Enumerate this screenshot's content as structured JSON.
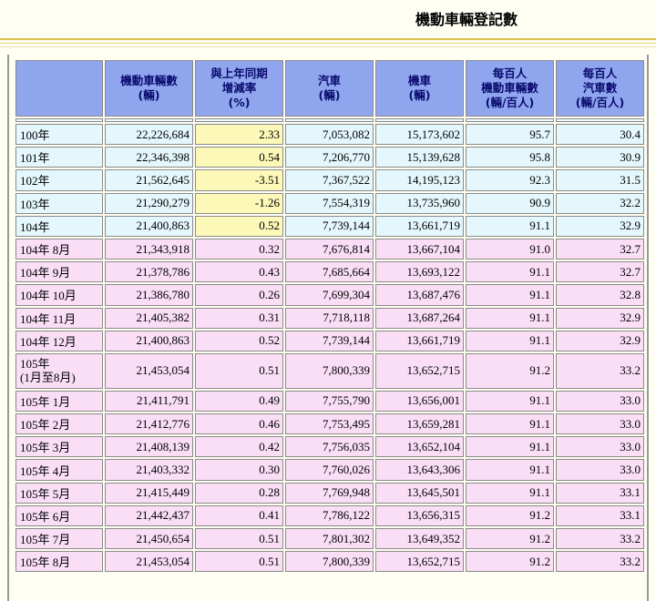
{
  "title": "機動車輛登記數",
  "headers": [
    "",
    "機動車輛數\n(輛)",
    "與上年同期\n增減率\n(%)",
    "汽車\n(輛)",
    "機車\n(輛)",
    "每百人\n機動車輛數\n(輛/百人)",
    "每百人\n汽車數\n(輛/百人)"
  ],
  "annual_rows": [
    {
      "period": "100年",
      "vehicles": "22,226,684",
      "rate": "2.33",
      "cars": "7,053,082",
      "motorcycles": "15,173,602",
      "veh_per100": "95.7",
      "car_per100": "30.4"
    },
    {
      "period": "101年",
      "vehicles": "22,346,398",
      "rate": "0.54",
      "cars": "7,206,770",
      "motorcycles": "15,139,628",
      "veh_per100": "95.8",
      "car_per100": "30.9"
    },
    {
      "period": "102年",
      "vehicles": "21,562,645",
      "rate": "-3.51",
      "cars": "7,367,522",
      "motorcycles": "14,195,123",
      "veh_per100": "92.3",
      "car_per100": "31.5"
    },
    {
      "period": "103年",
      "vehicles": "21,290,279",
      "rate": "-1.26",
      "cars": "7,554,319",
      "motorcycles": "13,735,960",
      "veh_per100": "90.9",
      "car_per100": "32.2"
    },
    {
      "period": "104年",
      "vehicles": "21,400,863",
      "rate": "0.52",
      "cars": "7,739,144",
      "motorcycles": "13,661,719",
      "veh_per100": "91.1",
      "car_per100": "32.9"
    }
  ],
  "monthly_rows": [
    {
      "period": "104年 8月",
      "vehicles": "21,343,918",
      "rate": "0.32",
      "cars": "7,676,814",
      "motorcycles": "13,667,104",
      "veh_per100": "91.0",
      "car_per100": "32.7"
    },
    {
      "period": "104年 9月",
      "vehicles": "21,378,786",
      "rate": "0.43",
      "cars": "7,685,664",
      "motorcycles": "13,693,122",
      "veh_per100": "91.1",
      "car_per100": "32.7"
    },
    {
      "period": "104年 10月",
      "vehicles": "21,386,780",
      "rate": "0.26",
      "cars": "7,699,304",
      "motorcycles": "13,687,476",
      "veh_per100": "91.1",
      "car_per100": "32.8"
    },
    {
      "period": "104年 11月",
      "vehicles": "21,405,382",
      "rate": "0.31",
      "cars": "7,718,118",
      "motorcycles": "13,687,264",
      "veh_per100": "91.1",
      "car_per100": "32.9"
    },
    {
      "period": "104年 12月",
      "vehicles": "21,400,863",
      "rate": "0.52",
      "cars": "7,739,144",
      "motorcycles": "13,661,719",
      "veh_per100": "91.1",
      "car_per100": "32.9"
    },
    {
      "period": "105年\n(1月至8月)",
      "vehicles": "21,453,054",
      "rate": "0.51",
      "cars": "7,800,339",
      "motorcycles": "13,652,715",
      "veh_per100": "91.2",
      "car_per100": "33.2",
      "tall": true
    },
    {
      "period": "105年 1月",
      "vehicles": "21,411,791",
      "rate": "0.49",
      "cars": "7,755,790",
      "motorcycles": "13,656,001",
      "veh_per100": "91.1",
      "car_per100": "33.0"
    },
    {
      "period": "105年 2月",
      "vehicles": "21,412,776",
      "rate": "0.46",
      "cars": "7,753,495",
      "motorcycles": "13,659,281",
      "veh_per100": "91.1",
      "car_per100": "33.0"
    },
    {
      "period": "105年 3月",
      "vehicles": "21,408,139",
      "rate": "0.42",
      "cars": "7,756,035",
      "motorcycles": "13,652,104",
      "veh_per100": "91.1",
      "car_per100": "33.0"
    },
    {
      "period": "105年 4月",
      "vehicles": "21,403,332",
      "rate": "0.30",
      "cars": "7,760,026",
      "motorcycles": "13,643,306",
      "veh_per100": "91.1",
      "car_per100": "33.0"
    },
    {
      "period": "105年 5月",
      "vehicles": "21,415,449",
      "rate": "0.28",
      "cars": "7,769,948",
      "motorcycles": "13,645,501",
      "veh_per100": "91.1",
      "car_per100": "33.1"
    },
    {
      "period": "105年 6月",
      "vehicles": "21,442,437",
      "rate": "0.41",
      "cars": "7,786,122",
      "motorcycles": "13,656,315",
      "veh_per100": "91.2",
      "car_per100": "33.1"
    },
    {
      "period": "105年 7月",
      "vehicles": "21,450,654",
      "rate": "0.51",
      "cars": "7,801,302",
      "motorcycles": "13,649,352",
      "veh_per100": "91.2",
      "car_per100": "33.2"
    },
    {
      "period": "105年 8月",
      "vehicles": "21,453,054",
      "rate": "0.51",
      "cars": "7,800,339",
      "motorcycles": "13,652,715",
      "veh_per100": "91.2",
      "car_per100": "33.2"
    }
  ]
}
